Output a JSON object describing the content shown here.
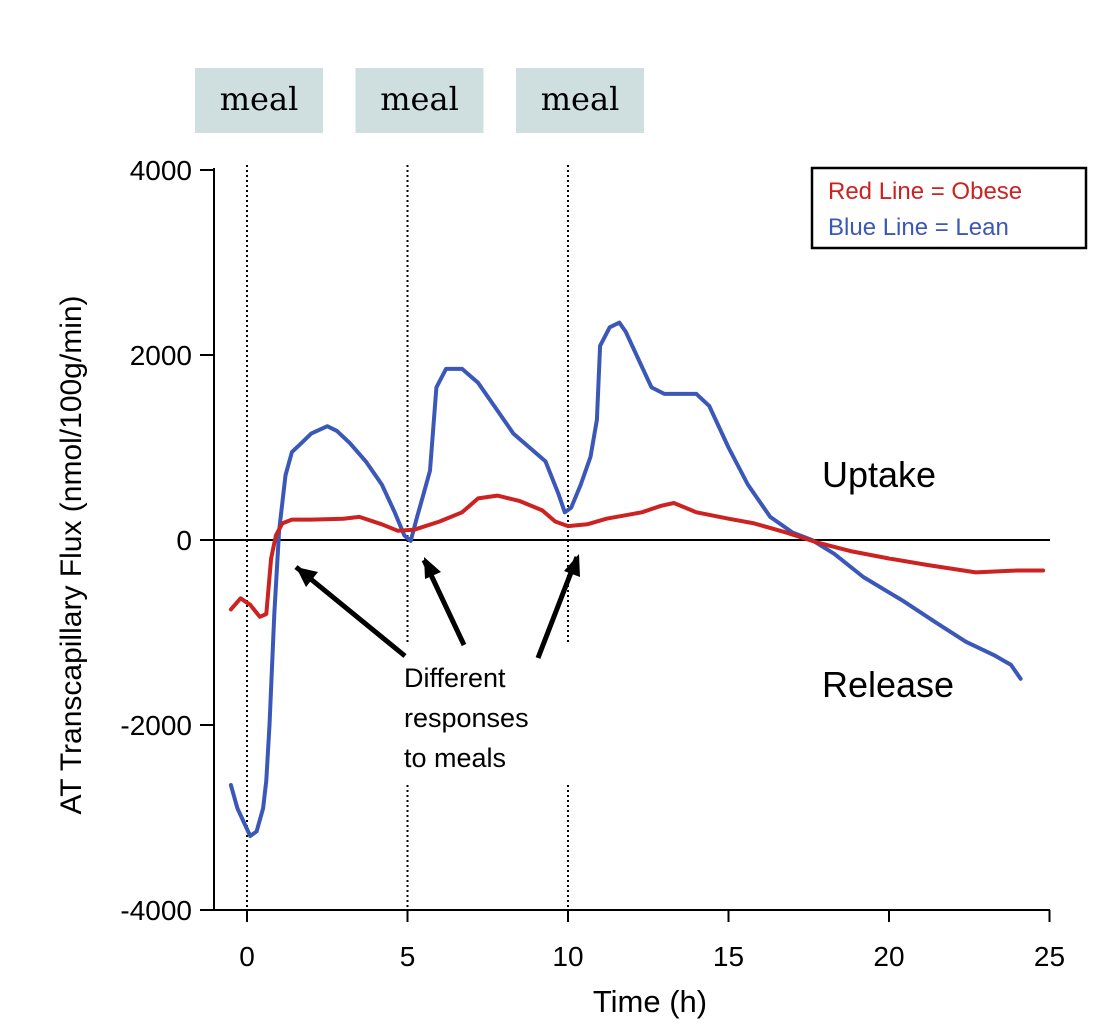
{
  "chart_data": {
    "type": "line",
    "title": "",
    "xlabel": "Time (h)",
    "ylabel": "AT Transcapillary Flux (nmol/100g/min)",
    "xlim": [
      -1,
      25
    ],
    "ylim": [
      -4000,
      4000
    ],
    "x_ticks": [
      0,
      5,
      10,
      15,
      20,
      25
    ],
    "y_ticks": [
      -4000,
      -2000,
      0,
      2000,
      4000
    ],
    "x_tick_labels": [
      "0",
      "5",
      "10",
      "15",
      "20",
      "25"
    ],
    "y_tick_labels": [
      "-4000",
      "-2000",
      "0",
      "2000",
      "4000"
    ],
    "grid": false,
    "zero_line": true,
    "legend": {
      "placement": "top-right",
      "entries": [
        {
          "text": "Red Line = Obese",
          "color": "#cc2222"
        },
        {
          "text": "Blue Line = Lean",
          "color": "#3b57b8"
        }
      ]
    },
    "meals": [
      {
        "label": "meal",
        "time": 0
      },
      {
        "label": "meal",
        "time": 5
      },
      {
        "label": "meal",
        "time": 10
      }
    ],
    "annotations": {
      "uptake": "Uptake",
      "release": "Release",
      "responses": [
        "Different",
        "responses",
        "to meals"
      ]
    },
    "series": [
      {
        "name": "Obese",
        "color": "#cc2222",
        "points": [
          [
            -0.5,
            -750
          ],
          [
            -0.2,
            -630
          ],
          [
            0.1,
            -700
          ],
          [
            0.4,
            -830
          ],
          [
            0.6,
            -800
          ],
          [
            0.75,
            -200
          ],
          [
            0.9,
            50
          ],
          [
            1.1,
            180
          ],
          [
            1.4,
            220
          ],
          [
            2.0,
            220
          ],
          [
            3.0,
            230
          ],
          [
            3.5,
            250
          ],
          [
            4.2,
            170
          ],
          [
            4.7,
            100
          ],
          [
            5.2,
            110
          ],
          [
            6.0,
            200
          ],
          [
            6.7,
            300
          ],
          [
            7.2,
            450
          ],
          [
            7.8,
            480
          ],
          [
            8.5,
            420
          ],
          [
            9.2,
            320
          ],
          [
            9.6,
            200
          ],
          [
            10.0,
            150
          ],
          [
            10.6,
            170
          ],
          [
            11.2,
            230
          ],
          [
            12.3,
            300
          ],
          [
            12.9,
            370
          ],
          [
            13.3,
            400
          ],
          [
            14.0,
            300
          ],
          [
            15.0,
            230
          ],
          [
            15.8,
            180
          ],
          [
            16.8,
            80
          ],
          [
            17.8,
            -30
          ],
          [
            18.8,
            -120
          ],
          [
            20.0,
            -200
          ],
          [
            21.2,
            -270
          ],
          [
            22.7,
            -350
          ],
          [
            24.0,
            -330
          ],
          [
            24.8,
            -330
          ]
        ]
      },
      {
        "name": "Lean",
        "color": "#3b57b8",
        "points": [
          [
            -0.5,
            -2650
          ],
          [
            -0.3,
            -2900
          ],
          [
            -0.1,
            -3050
          ],
          [
            0.1,
            -3200
          ],
          [
            0.3,
            -3150
          ],
          [
            0.5,
            -2900
          ],
          [
            0.6,
            -2600
          ],
          [
            0.7,
            -2000
          ],
          [
            0.85,
            -800
          ],
          [
            1.0,
            100
          ],
          [
            1.2,
            700
          ],
          [
            1.4,
            950
          ],
          [
            1.7,
            1050
          ],
          [
            2.0,
            1150
          ],
          [
            2.5,
            1230
          ],
          [
            2.8,
            1180
          ],
          [
            3.2,
            1050
          ],
          [
            3.7,
            850
          ],
          [
            4.2,
            600
          ],
          [
            4.6,
            300
          ],
          [
            4.9,
            50
          ],
          [
            5.1,
            -10
          ],
          [
            5.3,
            250
          ],
          [
            5.5,
            500
          ],
          [
            5.7,
            750
          ],
          [
            5.9,
            1650
          ],
          [
            6.2,
            1850
          ],
          [
            6.7,
            1850
          ],
          [
            7.2,
            1700
          ],
          [
            7.8,
            1400
          ],
          [
            8.3,
            1150
          ],
          [
            8.8,
            1000
          ],
          [
            9.3,
            850
          ],
          [
            9.7,
            500
          ],
          [
            9.9,
            300
          ],
          [
            10.1,
            350
          ],
          [
            10.4,
            600
          ],
          [
            10.7,
            900
          ],
          [
            10.9,
            1300
          ],
          [
            11.0,
            2100
          ],
          [
            11.3,
            2300
          ],
          [
            11.6,
            2350
          ],
          [
            11.8,
            2250
          ],
          [
            12.2,
            1950
          ],
          [
            12.6,
            1650
          ],
          [
            13.0,
            1580
          ],
          [
            14.0,
            1580
          ],
          [
            14.4,
            1450
          ],
          [
            15.0,
            1000
          ],
          [
            15.6,
            600
          ],
          [
            16.3,
            250
          ],
          [
            17.0,
            80
          ],
          [
            17.6,
            0
          ],
          [
            18.3,
            -150
          ],
          [
            19.2,
            -400
          ],
          [
            20.4,
            -650
          ],
          [
            21.5,
            -900
          ],
          [
            22.4,
            -1100
          ],
          [
            23.3,
            -1250
          ],
          [
            23.8,
            -1350
          ],
          [
            24.1,
            -1500
          ]
        ]
      }
    ]
  }
}
